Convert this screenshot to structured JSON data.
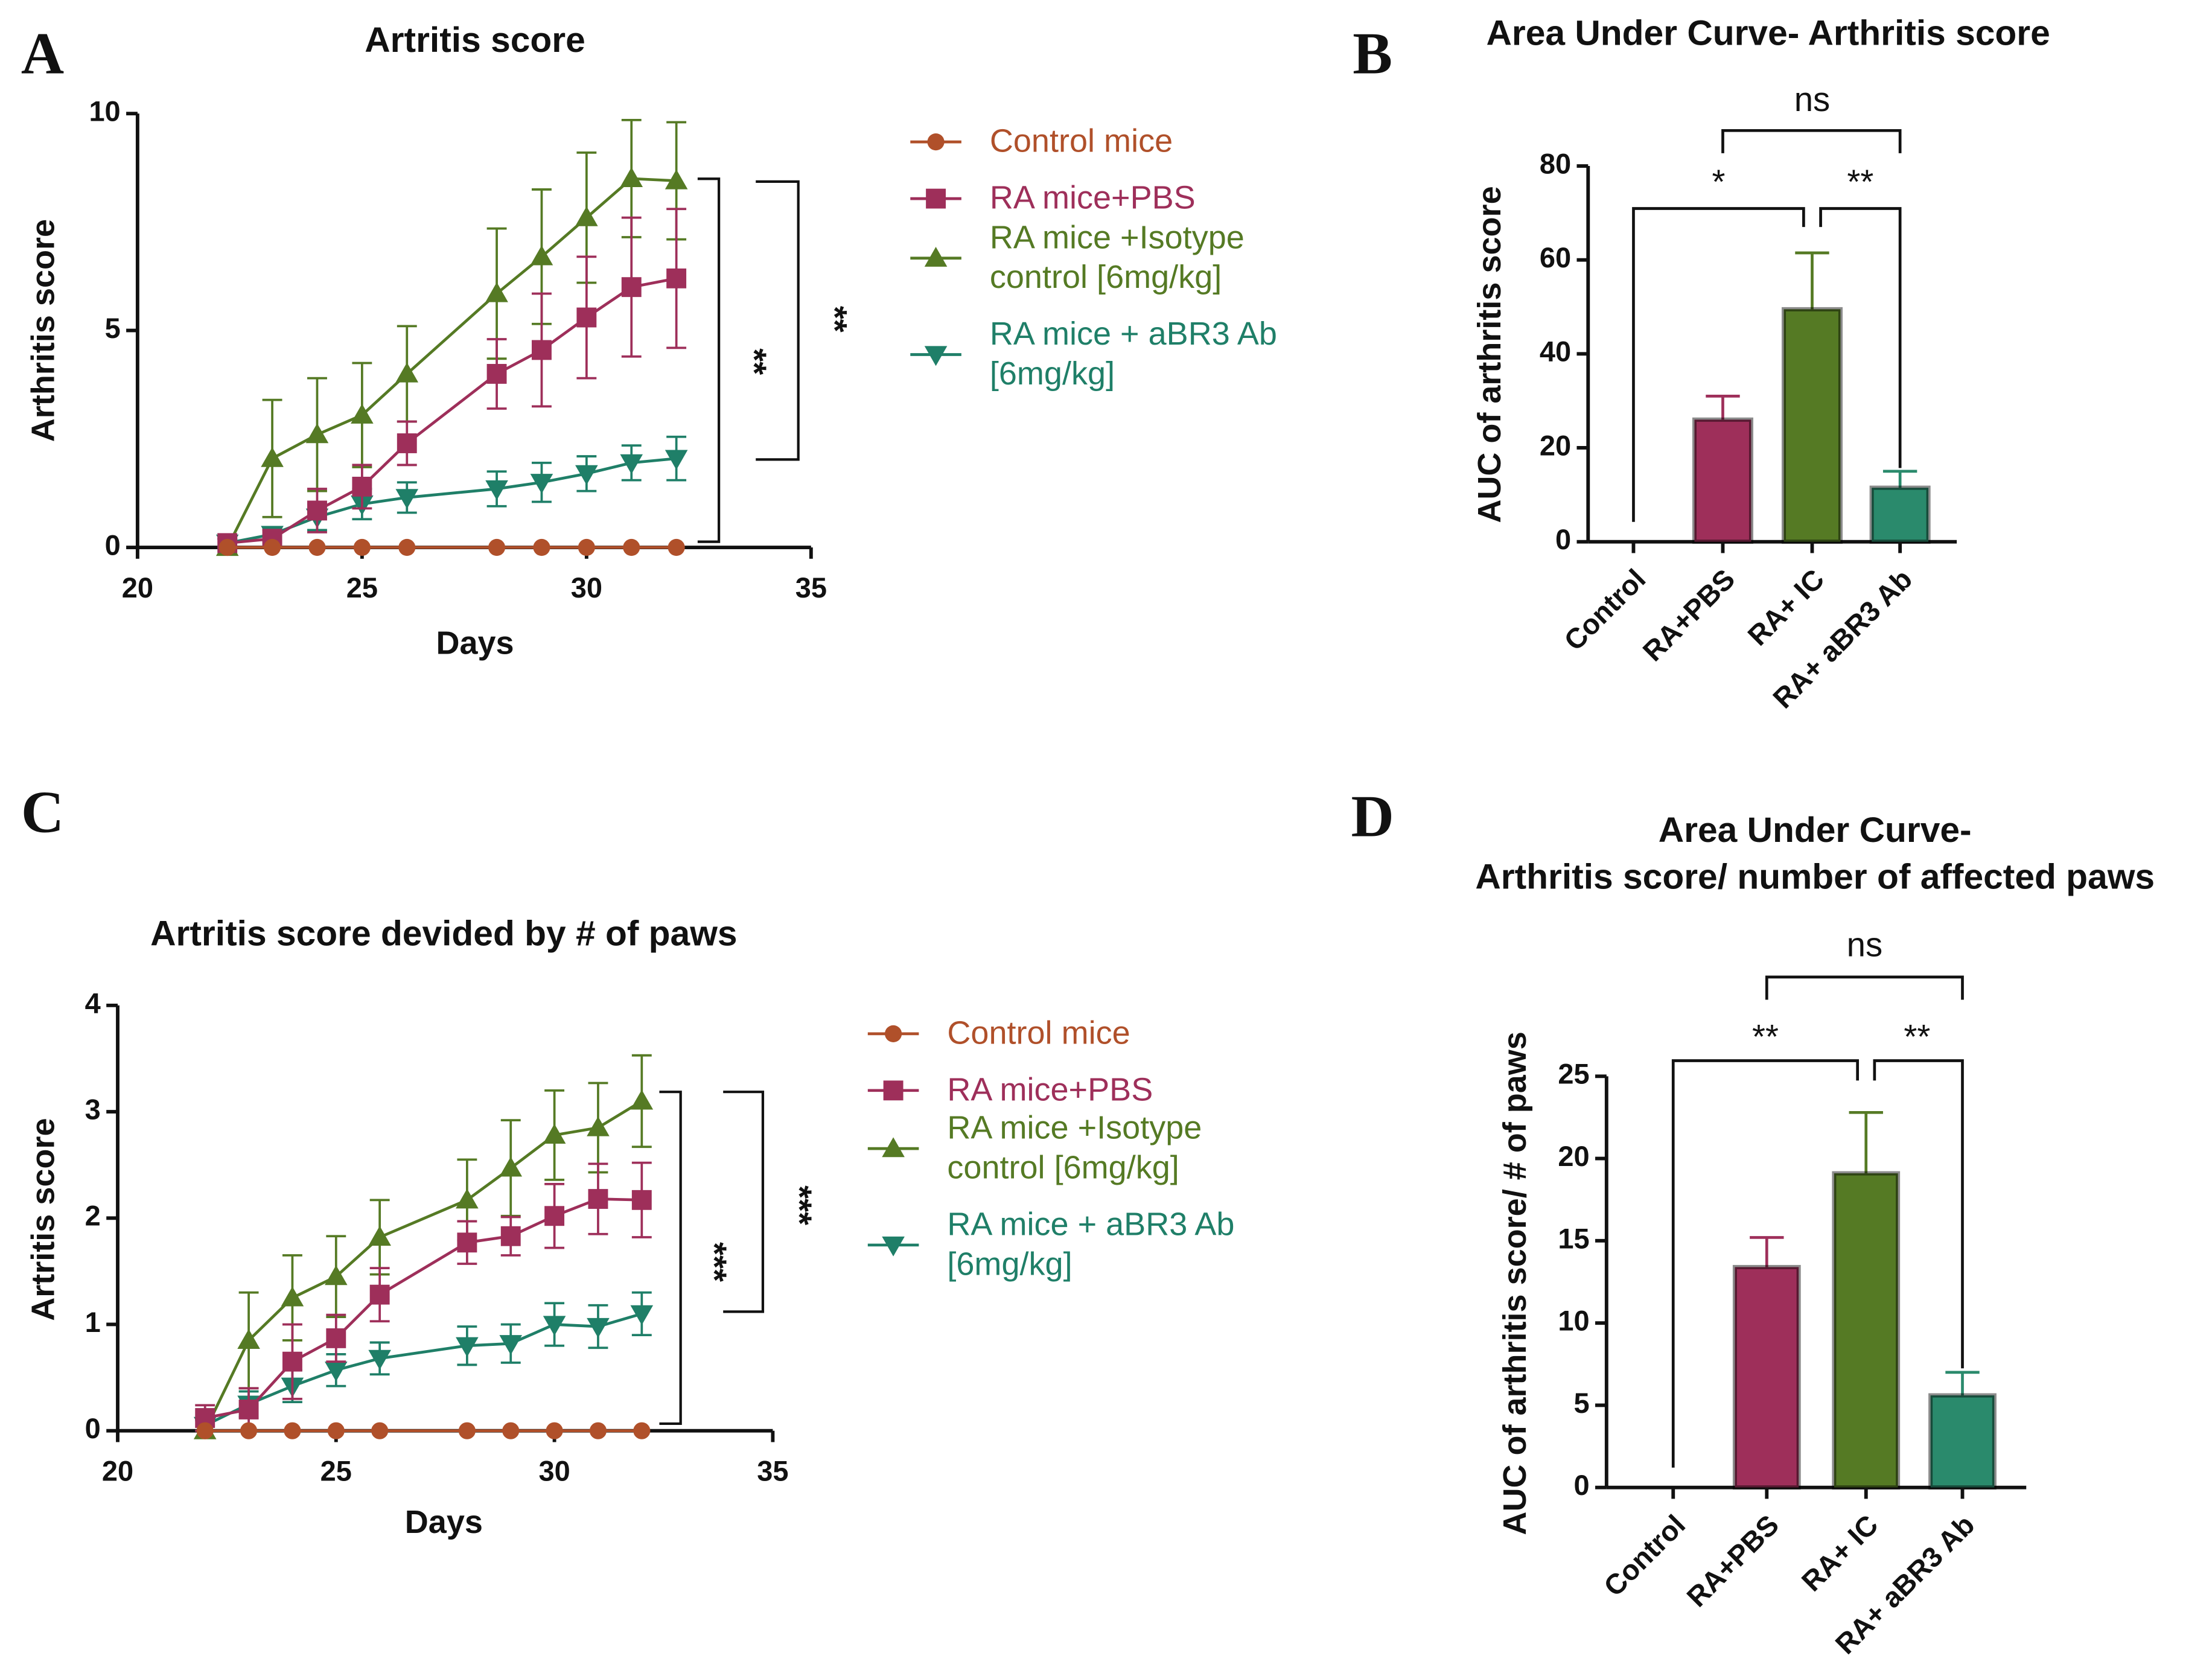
{
  "chart_data": [
    {
      "type": "line",
      "panel": "A",
      "title": "Artritis score",
      "xlabel": "Days",
      "ylabel": "Arthritis score",
      "x": [
        22,
        23,
        24,
        25,
        26,
        28,
        29,
        30,
        31,
        32
      ],
      "xlim": [
        20,
        35
      ],
      "xticks": [
        20,
        25,
        30,
        35
      ],
      "ylim": [
        0,
        10
      ],
      "yticks": [
        0,
        5,
        10
      ],
      "series": [
        {
          "name": "Control mice",
          "color": "#b0502a",
          "marker": "circle",
          "values": [
            0,
            0,
            0,
            0,
            0,
            0,
            0,
            0,
            0,
            0
          ],
          "errors": [
            0,
            0,
            0,
            0,
            0,
            0,
            0,
            0,
            0,
            0
          ]
        },
        {
          "name": "RA mice+PBS",
          "color": "#9e2f5a",
          "marker": "square",
          "values": [
            0.1,
            0.2,
            0.85,
            1.4,
            2.4,
            4.0,
            4.55,
            5.3,
            6.0,
            6.2
          ],
          "errors": [
            0.1,
            0.2,
            0.5,
            0.5,
            0.5,
            0.8,
            1.3,
            1.4,
            1.6,
            1.6
          ]
        },
        {
          "name": "RA mice +Isotype control [6mg/kg]",
          "color": "#557a24",
          "marker": "triangle-up",
          "values": [
            0,
            2.05,
            2.6,
            3.05,
            4.0,
            5.85,
            6.7,
            7.6,
            8.5,
            8.45
          ],
          "errors": [
            0,
            1.35,
            1.3,
            1.2,
            1.1,
            1.5,
            1.55,
            1.5,
            1.35,
            1.35
          ]
        },
        {
          "name": "RA mice + aBR3 Ab [6mg/kg]",
          "color": "#1f7f68",
          "marker": "triangle-down",
          "values": [
            0.1,
            0.3,
            0.7,
            1.0,
            1.15,
            1.35,
            1.5,
            1.7,
            1.95,
            2.05
          ],
          "errors": [
            0.1,
            0.15,
            0.3,
            0.35,
            0.35,
            0.4,
            0.45,
            0.4,
            0.4,
            0.5
          ]
        }
      ],
      "annotations": [
        "**",
        "**"
      ]
    },
    {
      "type": "bar",
      "panel": "B",
      "title": "Area Under Curve- Arthritis score",
      "ylabel": "AUC of arthritis score",
      "categories": [
        "Control",
        "RA+PBS",
        "RA+ IC",
        "RA+ aBR3 Ab"
      ],
      "values": [
        0,
        26,
        49.5,
        11.5
      ],
      "errors": [
        0,
        5,
        12,
        3.5
      ],
      "colors": [
        "#b0502a",
        "#9e2f5a",
        "#557a24",
        "#2a8a6c"
      ],
      "ylim": [
        0,
        80
      ],
      "yticks": [
        0,
        20,
        40,
        60,
        80
      ],
      "annotations": [
        "ns",
        "*",
        "**"
      ]
    },
    {
      "type": "line",
      "panel": "C",
      "title": "Artritis score devided by # of paws",
      "xlabel": "Days",
      "ylabel": "Artritis score",
      "x": [
        22,
        23,
        24,
        25,
        26,
        28,
        29,
        30,
        31,
        32
      ],
      "xlim": [
        20,
        35
      ],
      "xticks": [
        20,
        25,
        30,
        35
      ],
      "ylim": [
        0,
        4
      ],
      "yticks": [
        0,
        1,
        2,
        3,
        4
      ],
      "series": [
        {
          "name": "Control mice",
          "color": "#b0502a",
          "marker": "circle",
          "values": [
            0,
            0,
            0,
            0,
            0,
            0,
            0,
            0,
            0,
            0
          ],
          "errors": [
            0,
            0,
            0,
            0,
            0,
            0,
            0,
            0,
            0,
            0
          ]
        },
        {
          "name": "RA mice+PBS",
          "color": "#9e2f5a",
          "marker": "square",
          "values": [
            0.12,
            0.2,
            0.65,
            0.87,
            1.28,
            1.77,
            1.83,
            2.02,
            2.18,
            2.17
          ],
          "errors": [
            0.12,
            0.2,
            0.35,
            0.22,
            0.25,
            0.2,
            0.18,
            0.3,
            0.33,
            0.35
          ]
        },
        {
          "name": "RA mice +Isotype control [6mg/kg]",
          "color": "#557a24",
          "marker": "triangle-up",
          "values": [
            0,
            0.85,
            1.25,
            1.45,
            1.82,
            2.17,
            2.47,
            2.78,
            2.85,
            3.1
          ],
          "errors": [
            0,
            0.45,
            0.4,
            0.38,
            0.35,
            0.38,
            0.45,
            0.42,
            0.42,
            0.43
          ]
        },
        {
          "name": "RA mice + aBR3 Ab [6mg/kg]",
          "color": "#1f7f68",
          "marker": "triangle-down",
          "values": [
            0.05,
            0.25,
            0.42,
            0.57,
            0.68,
            0.8,
            0.82,
            1.0,
            0.98,
            1.1
          ],
          "errors": [
            0.05,
            0.12,
            0.15,
            0.15,
            0.15,
            0.18,
            0.18,
            0.2,
            0.2,
            0.2
          ]
        }
      ],
      "annotations": [
        "***",
        "***"
      ]
    },
    {
      "type": "bar",
      "panel": "D",
      "title": [
        "Area Under Curve-",
        "Arthritis score/ number of affected paws"
      ],
      "ylabel": "AUC of arthritis score/ # of paws",
      "categories": [
        "Control",
        "RA+PBS",
        "RA+ IC",
        "RA+ aBR3 Ab"
      ],
      "values": [
        0,
        13.4,
        19.1,
        5.6
      ],
      "errors": [
        0,
        1.8,
        3.7,
        1.4
      ],
      "colors": [
        "#b0502a",
        "#9e2f5a",
        "#557a24",
        "#2a8a6c"
      ],
      "ylim": [
        0,
        25
      ],
      "yticks": [
        0,
        5,
        10,
        15,
        20,
        25
      ],
      "annotations": [
        "ns",
        "**",
        "**"
      ]
    }
  ]
}
